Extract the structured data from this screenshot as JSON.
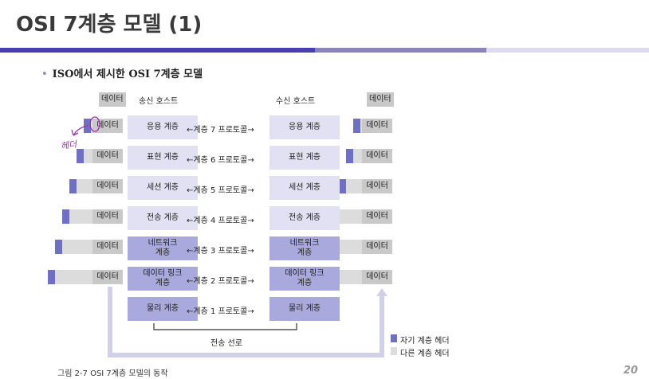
{
  "slide": {
    "title": "OSI 7계층 모델 (1)",
    "bullet": "ISO에서 제시한 OSI 7계층 모델",
    "page_number": "20"
  },
  "diagram": {
    "top_data_left": "데이터",
    "top_data_right": "데이터",
    "sender": "송신 호스트",
    "receiver": "수신 호스트",
    "data_label": "데이터",
    "handwritten_note": "헤더",
    "layers": [
      {
        "name": "응용 계층",
        "protocol": "계층 7 프로토콜"
      },
      {
        "name": "표현 계층",
        "protocol": "계층 6 프로토콜"
      },
      {
        "name": "세션 계층",
        "protocol": "계층 5 프로토콜"
      },
      {
        "name": "전송 계층",
        "protocol": "계층 4 프로토콜"
      },
      {
        "name": "네트워크\n계층",
        "protocol": "계층 3 프로토콜"
      },
      {
        "name": "데이터 링크\n계층",
        "protocol": "계층 2 프로토콜"
      },
      {
        "name": "물리 계층",
        "protocol": "계층 1 프로토콜"
      }
    ],
    "medium": "전송 선로",
    "legend": {
      "own_header": "자기 계층 헤더",
      "other_header": "다른 계층 헤더"
    },
    "caption": "그림 2-7  OSI 7계층 모델의 동작"
  },
  "colors": {
    "layer_light": "#e1e1f3",
    "layer_dark": "#a9a9dd",
    "header_blue": "#6f6fc5",
    "header_gray": "#dcdcdc"
  }
}
